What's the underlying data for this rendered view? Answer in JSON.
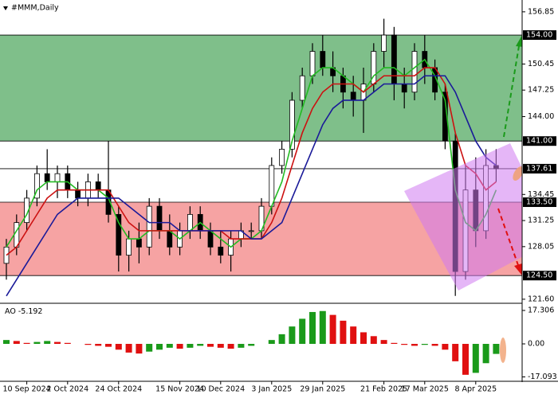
{
  "chart_data": [
    {
      "type": "candlestick",
      "title": "#MMM,Daily",
      "categories": [
        null,
        null,
        "10 Sep 2024",
        null,
        null,
        null,
        "2 Oct 2024",
        null,
        null,
        null,
        null,
        "24 Oct 2024",
        null,
        null,
        null,
        null,
        null,
        "15 Nov 2024",
        null,
        null,
        null,
        "10 Dec 2024",
        null,
        null,
        null,
        null,
        "3 Jan 2025",
        null,
        null,
        null,
        null,
        "29 Jan 2025",
        null,
        null,
        null,
        null,
        null,
        "21 Feb 2025",
        null,
        null,
        null,
        "17 Mar 2025",
        null,
        null,
        null,
        null,
        "8 Apr 2025",
        null,
        null
      ],
      "values": [
        [
          126,
          129,
          124,
          128
        ],
        [
          128,
          132,
          127,
          131
        ],
        [
          131,
          135,
          130,
          134
        ],
        [
          134,
          138,
          133,
          137
        ],
        [
          137,
          140,
          135,
          136
        ],
        [
          136,
          138,
          134,
          137
        ],
        [
          137,
          138,
          134,
          135
        ],
        [
          135,
          136,
          133,
          134
        ],
        [
          134,
          137,
          133,
          136
        ],
        [
          136,
          137,
          134,
          135
        ],
        [
          135,
          141,
          131,
          132
        ],
        [
          132,
          133,
          125,
          127
        ],
        [
          127,
          130,
          125,
          129
        ],
        [
          129,
          131,
          126,
          128
        ],
        [
          128,
          134,
          127,
          133
        ],
        [
          133,
          134,
          129,
          130
        ],
        [
          130,
          132,
          127,
          128
        ],
        [
          128,
          131,
          127,
          130
        ],
        [
          130,
          133,
          129,
          132
        ],
        [
          132,
          133,
          129,
          130
        ],
        [
          130,
          131,
          127,
          128
        ],
        [
          128,
          130,
          126,
          127
        ],
        [
          127,
          130,
          125,
          129
        ],
        [
          129,
          131,
          128,
          130
        ],
        [
          130,
          131,
          129,
          130
        ],
        [
          130,
          134,
          129,
          133
        ],
        [
          133,
          139,
          132,
          138
        ],
        [
          138,
          141,
          137,
          140
        ],
        [
          140,
          147,
          139,
          146
        ],
        [
          146,
          150,
          145,
          149
        ],
        [
          149,
          153,
          148,
          152
        ],
        [
          152,
          154,
          149,
          150
        ],
        [
          150,
          152,
          147,
          149
        ],
        [
          149,
          150,
          145,
          147
        ],
        [
          147,
          149,
          144,
          146
        ],
        [
          146,
          150,
          142,
          148
        ],
        [
          148,
          153,
          147,
          152
        ],
        [
          152,
          156,
          150,
          154
        ],
        [
          154,
          155,
          146,
          148
        ],
        [
          148,
          150,
          145,
          147
        ],
        [
          147,
          153,
          146,
          152
        ],
        [
          152,
          154,
          148,
          150
        ],
        [
          150,
          151,
          146,
          147
        ],
        [
          147,
          148,
          140,
          141
        ],
        [
          141,
          142,
          122,
          125
        ],
        [
          125,
          138,
          124,
          135
        ],
        [
          135,
          139,
          128,
          130
        ],
        [
          130,
          140,
          129,
          138
        ],
        [
          138,
          140,
          136,
          137.61
        ]
      ],
      "up_color": "#ffffff",
      "down_color": "#000000",
      "overlays": [
        {
          "color": "#22bb22",
          "values": [
            128,
            130,
            132,
            135,
            136,
            136,
            136,
            135,
            135,
            135,
            134,
            131,
            129,
            129,
            130,
            130,
            130,
            129,
            130,
            131,
            130,
            129,
            128,
            129,
            129,
            130,
            133,
            136,
            141,
            145,
            149,
            150,
            150,
            149,
            148,
            147,
            149,
            150,
            150,
            149,
            150,
            151,
            149,
            146,
            135,
            131,
            130,
            132,
            135
          ]
        },
        {
          "color": "#cc1111",
          "values": [
            127,
            128,
            130,
            132,
            134,
            135,
            135,
            135,
            135,
            135,
            135,
            133,
            131,
            130,
            130,
            130,
            130,
            130,
            130,
            130,
            130,
            130,
            129,
            129,
            129,
            129,
            131,
            134,
            138,
            142,
            145,
            147,
            148,
            148,
            148,
            147,
            148,
            149,
            149,
            149,
            149,
            150,
            150,
            148,
            142,
            138,
            137,
            135,
            136
          ]
        },
        {
          "color": "#1a1a99",
          "values": [
            122,
            124,
            126,
            128,
            130,
            132,
            133,
            134,
            134,
            134,
            134,
            134,
            133,
            132,
            131,
            131,
            131,
            130,
            130,
            130,
            130,
            130,
            130,
            130,
            129,
            129,
            130,
            131,
            134,
            137,
            140,
            143,
            145,
            146,
            146,
            146,
            147,
            148,
            148,
            148,
            148,
            149,
            149,
            149,
            147,
            144,
            141,
            139,
            138
          ]
        }
      ],
      "zones": [
        {
          "from": 141,
          "to": 154,
          "color": "#7fbf8a"
        },
        {
          "from": 124.5,
          "to": 133.5,
          "color": "#f6a3a3"
        }
      ],
      "ylim": [
        121.2,
        158.3
      ],
      "yticks": [
        156.85,
        150.45,
        147.25,
        {
          "value": 144,
          "label": "144.00"
        },
        134.45,
        131.25,
        128.05,
        {
          "value": 121.6,
          "label": "121.60"
        }
      ],
      "levels": [
        {
          "value": 154,
          "label": "154.00"
        },
        {
          "value": 141,
          "label": "141.00"
        },
        {
          "value": 137.61,
          "label": "137.61"
        },
        {
          "value": 133.5,
          "label": "133.50"
        },
        {
          "value": 124.5,
          "label": "124.50"
        }
      ]
    },
    {
      "type": "bar",
      "name": "AO",
      "values": [
        2,
        1.5,
        0.5,
        1,
        1.5,
        1,
        0.5,
        0,
        -0.5,
        -1,
        -1.5,
        -3,
        -4.5,
        -5,
        -4,
        -3,
        -2,
        -2.5,
        -2,
        -1,
        -1.5,
        -2,
        -2.5,
        -2,
        -1,
        0,
        2,
        5,
        9,
        13,
        16.5,
        17,
        15,
        12,
        9,
        6,
        4,
        2,
        0.5,
        -0.5,
        -1,
        -0.5,
        -1,
        -3,
        -9,
        -16,
        -15,
        -10,
        -5.192
      ],
      "up_color": "#1a9a1a",
      "down_color": "#e01010",
      "ylim": [
        -18.95,
        19.78
      ],
      "yticks": [
        17.306,
        {
          "value": 0,
          "label": "0.00"
        },
        -17.093
      ]
    }
  ]
}
